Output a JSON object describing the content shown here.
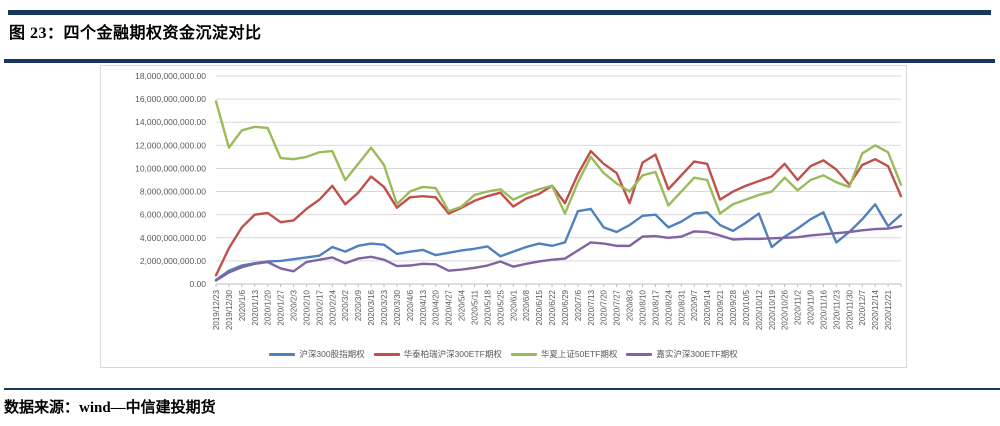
{
  "page": {
    "title": "图 23：四个金融期权资金沉淀对比",
    "source_label": "数据来源：wind—中信建投期货"
  },
  "colors": {
    "rule": "#17375E",
    "frame_border": "#D9D9D9",
    "gridline": "#D9D9D9",
    "axis_line": "#BFBFBF",
    "tick_label": "#595959",
    "legend_text": "#595959"
  },
  "chart_data": {
    "type": "line",
    "title": "",
    "xlabel": "",
    "ylabel": "",
    "grid": true,
    "legend_position": "bottom",
    "ylim": [
      0,
      18000000000
    ],
    "ylim_billions": [
      0,
      18
    ],
    "y_tick_step_billions": 2,
    "y_tick_labels": [
      "0.00",
      "2,000,000,000.00",
      "4,000,000,000.00",
      "6,000,000,000.00",
      "8,000,000,000.00",
      "10,000,000,000.00",
      "12,000,000,000.00",
      "14,000,000,000.00",
      "16,000,000,000.00",
      "18,000,000,000.00"
    ],
    "values_unit": "CNY, values_in_billions are ×1,000,000,000; estimated from gridlines",
    "note": "weekly x tick labels; each series has 54 points, the last point extends past the 2020/12/21 tick to the plot edge (year end)",
    "x_labels": [
      "2019/12/23",
      "2019/12/30",
      "2020/1/6",
      "2020/1/13",
      "2020/1/20",
      "2020/1/27",
      "2020/2/3",
      "2020/2/10",
      "2020/2/17",
      "2020/2/24",
      "2020/3/2",
      "2020/3/9",
      "2020/3/16",
      "2020/3/23",
      "2020/3/30",
      "2020/4/6",
      "2020/4/13",
      "2020/4/20",
      "2020/4/27",
      "2020/5/4",
      "2020/5/11",
      "2020/5/18",
      "2020/5/25",
      "2020/6/1",
      "2020/6/8",
      "2020/6/15",
      "2020/6/22",
      "2020/6/29",
      "2020/7/6",
      "2020/7/13",
      "2020/7/20",
      "2020/7/27",
      "2020/8/3",
      "2020/8/10",
      "2020/8/17",
      "2020/8/24",
      "2020/8/31",
      "2020/9/7",
      "2020/9/14",
      "2020/9/21",
      "2020/9/28",
      "2020/10/5",
      "2020/10/12",
      "2020/10/19",
      "2020/10/26",
      "2020/11/2",
      "2020/11/9",
      "2020/11/16",
      "2020/11/23",
      "2020/11/30",
      "2020/12/7",
      "2020/12/14",
      "2020/12/21"
    ],
    "series": [
      {
        "name": "沪深300股指期权",
        "color": "#4F81BD",
        "values_in_billions": [
          0.35,
          1.15,
          1.6,
          1.8,
          1.95,
          2.0,
          2.15,
          2.3,
          2.45,
          3.2,
          2.8,
          3.3,
          3.5,
          3.4,
          2.6,
          2.8,
          2.95,
          2.5,
          2.7,
          2.9,
          3.05,
          3.25,
          2.4,
          2.8,
          3.2,
          3.5,
          3.3,
          3.6,
          6.3,
          6.5,
          4.9,
          4.5,
          5.1,
          5.9,
          6.0,
          4.9,
          5.4,
          6.1,
          6.2,
          5.1,
          4.6,
          5.3,
          6.1,
          3.2,
          4.1,
          4.8,
          5.6,
          6.2,
          3.6,
          4.5,
          5.6,
          6.9,
          5.0,
          6.0
        ]
      },
      {
        "name": "华泰柏瑞沪深300ETF期权",
        "color": "#C0504D",
        "values_in_billions": [
          0.75,
          3.1,
          4.9,
          6.0,
          6.15,
          5.35,
          5.5,
          6.5,
          7.3,
          8.5,
          6.9,
          7.9,
          9.3,
          8.4,
          6.6,
          7.5,
          7.6,
          7.5,
          6.1,
          6.6,
          7.2,
          7.6,
          7.9,
          6.7,
          7.4,
          7.8,
          8.5,
          7.0,
          9.5,
          11.5,
          10.4,
          9.6,
          7.0,
          10.5,
          11.2,
          8.2,
          9.4,
          10.6,
          10.4,
          7.3,
          8.0,
          8.5,
          8.9,
          9.3,
          10.4,
          9.0,
          10.2,
          10.7,
          9.9,
          8.6,
          10.3,
          10.8,
          10.2,
          7.6
        ]
      },
      {
        "name": "华夏上证50ETF期权",
        "color": "#9BBB59",
        "values_in_billions": [
          15.8,
          11.8,
          13.3,
          13.6,
          13.5,
          10.9,
          10.8,
          11.0,
          11.4,
          11.5,
          9.0,
          10.4,
          11.8,
          10.3,
          6.9,
          8.0,
          8.4,
          8.3,
          6.3,
          6.7,
          7.7,
          8.0,
          8.2,
          7.3,
          7.8,
          8.2,
          8.5,
          6.1,
          8.8,
          11.0,
          9.6,
          8.7,
          8.0,
          9.4,
          9.7,
          6.8,
          8.0,
          9.2,
          9.0,
          6.1,
          6.9,
          7.3,
          7.7,
          8.0,
          9.2,
          8.1,
          9.0,
          9.4,
          8.8,
          8.4,
          11.3,
          12.0,
          11.4,
          8.6
        ]
      },
      {
        "name": "嘉实沪深300ETF期权",
        "color": "#8064A2",
        "values_in_billions": [
          0.3,
          1.0,
          1.45,
          1.75,
          1.9,
          1.35,
          1.1,
          1.9,
          2.1,
          2.3,
          1.8,
          2.2,
          2.35,
          2.1,
          1.55,
          1.6,
          1.75,
          1.7,
          1.15,
          1.25,
          1.4,
          1.6,
          1.95,
          1.5,
          1.75,
          1.95,
          2.1,
          2.2,
          2.9,
          3.6,
          3.5,
          3.3,
          3.3,
          4.1,
          4.15,
          4.0,
          4.1,
          4.55,
          4.5,
          4.2,
          3.85,
          3.9,
          3.9,
          3.95,
          4.0,
          4.05,
          4.2,
          4.3,
          4.4,
          4.5,
          4.65,
          4.75,
          4.8,
          5.0
        ]
      }
    ]
  }
}
